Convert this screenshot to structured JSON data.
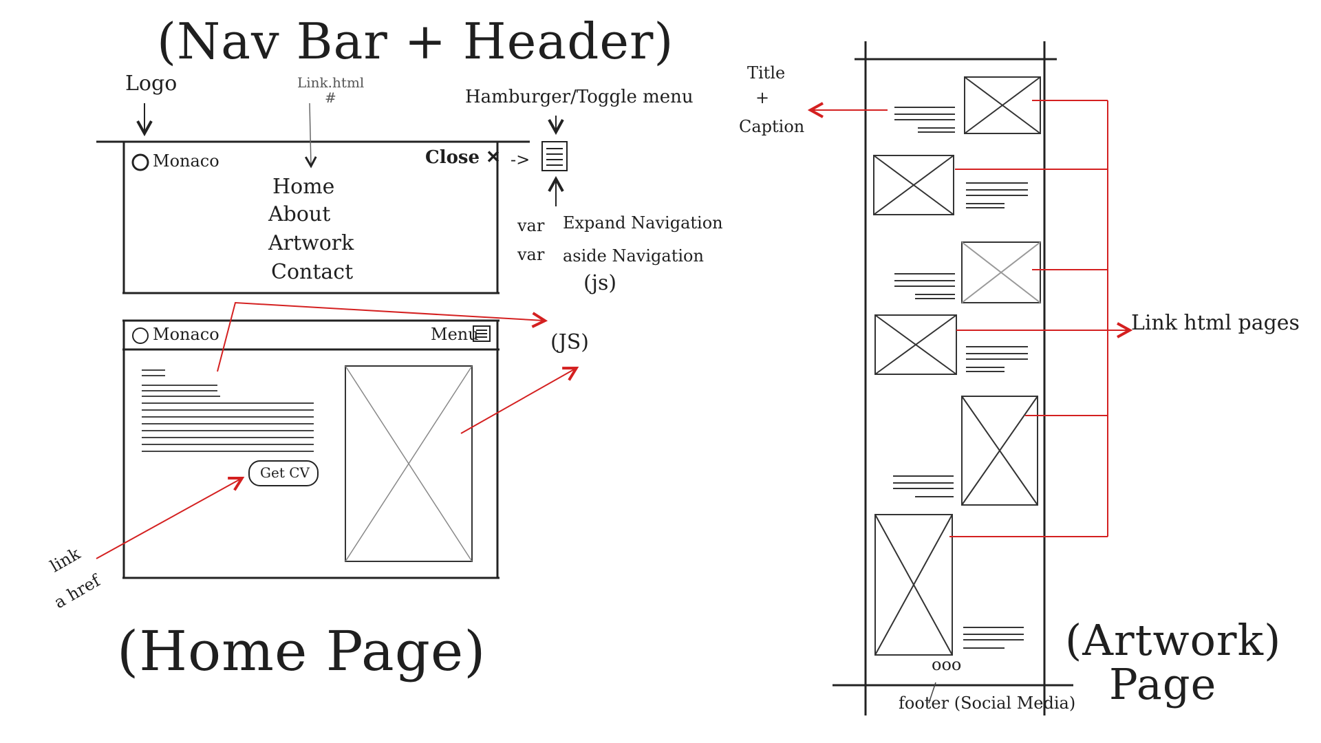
{
  "headings": {
    "nav_header": "(Nav Bar + Header)",
    "home_page": "(Home Page)",
    "artwork_line1": "(Artwork)",
    "artwork_line2": "Page"
  },
  "annotations": {
    "logo": "Logo",
    "link_html": "Link.html",
    "hash": "#",
    "hamburger": "Hamburger/Toggle menu",
    "var1": "var",
    "expand": "Expand Navigation",
    "var2": "var",
    "aside": "aside Navigation",
    "js1": "(js)",
    "js2": "(JS)",
    "link_ahref_1": "link",
    "link_ahref_2": "a href",
    "title_1": "Title",
    "title_plus": "+",
    "title_2": "Caption",
    "link_pages": "Link html pages",
    "footer": "footer (Social Media)",
    "footer_dots": "ooo"
  },
  "nav_mock": {
    "brand": "Monaco",
    "close": "Close ✕",
    "arrow": "->",
    "links": [
      "Home",
      "About",
      "Artwork",
      "Contact"
    ]
  },
  "home_mock": {
    "brand": "Monaco",
    "menu": "Menu",
    "cta": "Get CV"
  },
  "colors": {
    "ink": "#1f1f1f",
    "pencil": "#555555",
    "accent": "#d42020"
  }
}
